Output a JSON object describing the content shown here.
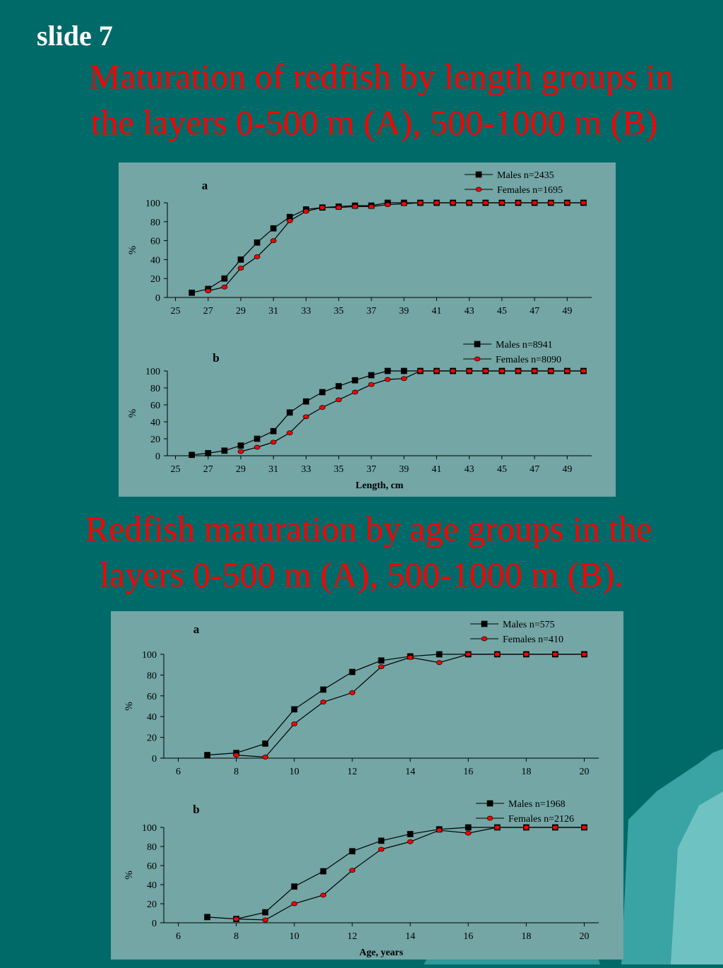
{
  "slide_label": "slide 7",
  "heading_1": [
    "Maturation of redfish by length groups in",
    "the layers   0-500 m (A),  500-1000 m (B)"
  ],
  "heading_2": [
    "Redfish maturation  by age groups in the",
    "layers  0-500 m (A),  500-1000 m (B)."
  ],
  "chart_data": [
    {
      "type": "line",
      "title": "a",
      "ylabel": "%",
      "x": [
        26,
        27,
        28,
        29,
        30,
        31,
        32,
        33,
        34,
        35,
        36,
        37,
        38,
        39,
        40,
        41,
        42,
        43,
        44,
        45,
        46,
        47,
        48,
        49,
        50
      ],
      "series": [
        {
          "name": "Males n=2435",
          "color": "#000000",
          "marker": "square",
          "values": [
            5,
            9,
            20,
            40,
            58,
            73,
            85,
            93,
            95,
            96,
            97,
            97,
            100,
            100,
            100,
            100,
            100,
            100,
            100,
            100,
            100,
            100,
            100,
            100,
            100
          ]
        },
        {
          "name": "Females n=1695",
          "color": "#ff0000",
          "marker": "circle",
          "values": [
            null,
            7,
            11,
            31,
            43,
            60,
            81,
            91,
            95,
            95,
            96,
            96,
            98,
            99,
            100,
            100,
            100,
            100,
            100,
            100,
            100,
            100,
            100,
            100,
            100
          ]
        }
      ],
      "xlim": [
        24.5,
        50.5
      ],
      "xticks": [
        25,
        27,
        29,
        31,
        33,
        35,
        37,
        39,
        41,
        43,
        45,
        47,
        49
      ],
      "ylim": [
        0,
        100
      ],
      "yticks": [
        0,
        20,
        40,
        60,
        80,
        100
      ]
    },
    {
      "type": "line",
      "title": "b",
      "ylabel": "%",
      "xlabel": "Length, cm",
      "x": [
        26,
        27,
        28,
        29,
        30,
        31,
        32,
        33,
        34,
        35,
        36,
        37,
        38,
        39,
        40,
        41,
        42,
        43,
        44,
        45,
        46,
        47,
        48,
        49,
        50
      ],
      "series": [
        {
          "name": "Males n=8941",
          "color": "#000000",
          "marker": "square",
          "values": [
            1,
            3,
            6,
            12,
            20,
            29,
            51,
            64,
            75,
            82,
            89,
            95,
            100,
            100,
            100,
            100,
            100,
            100,
            100,
            100,
            100,
            100,
            100,
            100,
            100
          ]
        },
        {
          "name": "Females n=8090",
          "color": "#ff0000",
          "marker": "circle",
          "values": [
            null,
            null,
            null,
            5,
            10,
            16,
            27,
            46,
            57,
            66,
            75,
            84,
            90,
            91,
            100,
            100,
            100,
            100,
            100,
            100,
            100,
            100,
            100,
            100,
            100
          ]
        }
      ],
      "xlim": [
        24.5,
        50.5
      ],
      "xticks": [
        25,
        27,
        29,
        31,
        33,
        35,
        37,
        39,
        41,
        43,
        45,
        47,
        49
      ],
      "ylim": [
        0,
        100
      ],
      "yticks": [
        0,
        20,
        40,
        60,
        80,
        100
      ]
    },
    {
      "type": "line",
      "title": "a",
      "ylabel": "%",
      "x": [
        7,
        8,
        9,
        10,
        11,
        12,
        13,
        14,
        15,
        16,
        17,
        18,
        19,
        20
      ],
      "series": [
        {
          "name": "Males n=575",
          "color": "#000000",
          "marker": "square",
          "values": [
            3,
            5,
            14,
            47,
            66,
            83,
            94,
            98,
            100,
            100,
            100,
            100,
            100,
            100
          ]
        },
        {
          "name": "Females n=410",
          "color": "#ff0000",
          "marker": "circle",
          "values": [
            null,
            3,
            1,
            33,
            54,
            63,
            88,
            97,
            92,
            100,
            100,
            100,
            100,
            100
          ]
        }
      ],
      "xlim": [
        5.5,
        20.5
      ],
      "xticks": [
        6,
        8,
        10,
        12,
        14,
        16,
        18,
        20
      ],
      "ylim": [
        0,
        100
      ],
      "yticks": [
        0,
        20,
        40,
        60,
        80,
        100
      ]
    },
    {
      "type": "line",
      "title": "b",
      "ylabel": "%",
      "xlabel": "Age, years",
      "x": [
        7,
        8,
        9,
        10,
        11,
        12,
        13,
        14,
        15,
        16,
        17,
        18,
        19,
        20
      ],
      "series": [
        {
          "name": "Males n=1968",
          "color": "#000000",
          "marker": "square",
          "values": [
            6,
            4,
            11,
            38,
            54,
            75,
            86,
            93,
            98,
            100,
            100,
            100,
            100,
            100
          ]
        },
        {
          "name": "Females n=2126",
          "color": "#ff0000",
          "marker": "circle",
          "values": [
            null,
            4,
            3,
            20,
            29,
            55,
            77,
            85,
            97,
            94,
            100,
            100,
            100,
            100
          ]
        }
      ],
      "xlim": [
        5.5,
        20.5
      ],
      "xticks": [
        6,
        8,
        10,
        12,
        14,
        16,
        18,
        20
      ],
      "ylim": [
        0,
        100
      ],
      "yticks": [
        0,
        20,
        40,
        60,
        80,
        100
      ]
    }
  ]
}
